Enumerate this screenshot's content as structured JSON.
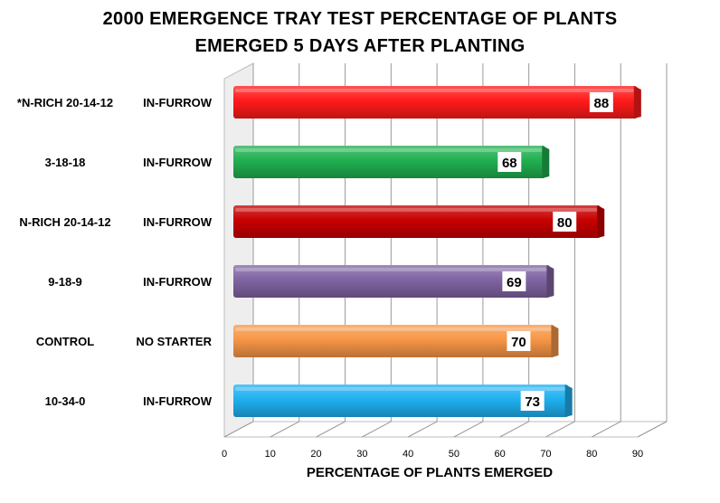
{
  "title": [
    "2000 EMERGENCE TRAY TEST PERCENTAGE OF PLANTS",
    "EMERGED 5 DAYS AFTER PLANTING"
  ],
  "chart_data": {
    "type": "bar",
    "orientation": "horizontal",
    "title": "2000 EMERGENCE TRAY TEST PERCENTAGE OF PLANTS EMERGED 5 DAYS AFTER PLANTING",
    "xlabel": "PERCENTAGE OF PLANTS EMERGED",
    "ylabel": "",
    "xlim": [
      0,
      90
    ],
    "xticks": [
      0,
      10,
      20,
      30,
      40,
      50,
      60,
      70,
      80,
      90
    ],
    "grid": true,
    "legend": "none",
    "categories": [
      {
        "product": "*N-RICH 20-14-12",
        "placement": "IN-FURROW"
      },
      {
        "product": "3-18-18",
        "placement": "IN-FURROW"
      },
      {
        "product": "N-RICH 20-14-12",
        "placement": "IN-FURROW"
      },
      {
        "product": "9-18-9",
        "placement": "IN-FURROW"
      },
      {
        "product": "CONTROL",
        "placement": "NO STARTER"
      },
      {
        "product": "10-34-0",
        "placement": "IN-FURROW"
      }
    ],
    "values": [
      88,
      68,
      80,
      69,
      70,
      73
    ],
    "colors": [
      "#ff1a1a",
      "#20b050",
      "#c80000",
      "#8064a2",
      "#f79646",
      "#1fb0f0"
    ]
  }
}
